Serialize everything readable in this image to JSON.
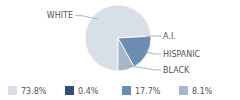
{
  "chart_data": {
    "type": "pie",
    "categories": [
      "WHITE",
      "A.I.",
      "HISPANIC",
      "BLACK"
    ],
    "values": [
      73.8,
      0.4,
      17.7,
      8.1
    ],
    "value_labels": [
      "73.8%",
      "0.4%",
      "17.7%",
      "8.1%"
    ],
    "colors": [
      "#d8dfe7",
      "#2c4f72",
      "#6c8db0",
      "#a5b7ca"
    ],
    "legend": "bottom"
  }
}
